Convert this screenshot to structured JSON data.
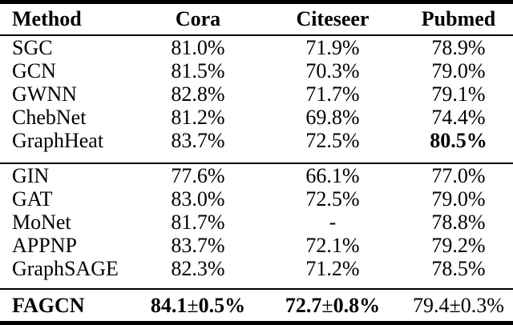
{
  "table": {
    "columns": {
      "method": "Method",
      "cora": "Cora",
      "citeseer": "Citeseer",
      "pubmed": "Pubmed"
    },
    "group1": [
      {
        "method": "SGC",
        "cora": "81.0%",
        "citeseer": "71.9%",
        "pubmed": "78.9%"
      },
      {
        "method": "GCN",
        "cora": "81.5%",
        "citeseer": "70.3%",
        "pubmed": "79.0%"
      },
      {
        "method": "GWNN",
        "cora": "82.8%",
        "citeseer": "71.7%",
        "pubmed": "79.1%"
      },
      {
        "method": "ChebNet",
        "cora": "81.2%",
        "citeseer": "69.8%",
        "pubmed": "74.4%"
      },
      {
        "method": "GraphHeat",
        "cora": "83.7%",
        "citeseer": "72.5%",
        "pubmed": "80.5%"
      }
    ],
    "group2": [
      {
        "method": "GIN",
        "cora": "77.6%",
        "citeseer": "66.1%",
        "pubmed": "77.0%"
      },
      {
        "method": "GAT",
        "cora": "83.0%",
        "citeseer": "72.5%",
        "pubmed": "79.0%"
      },
      {
        "method": "MoNet",
        "cora": "81.7%",
        "citeseer": "-",
        "pubmed": "78.8%"
      },
      {
        "method": "APPNP",
        "cora": "83.7%",
        "citeseer": "72.1%",
        "pubmed": "79.2%"
      },
      {
        "method": "GraphSAGE",
        "cora": "82.3%",
        "citeseer": "71.2%",
        "pubmed": "78.5%"
      }
    ],
    "fagcn": {
      "method": "FAGCN",
      "cora": {
        "val": "84.1",
        "pm": "±",
        "err": "0.5%"
      },
      "citeseer": {
        "val": "72.7",
        "pm": "±",
        "err": "0.8%"
      },
      "pubmed": {
        "val": "79.4",
        "pm": "±",
        "err": "0.3%"
      }
    }
  }
}
